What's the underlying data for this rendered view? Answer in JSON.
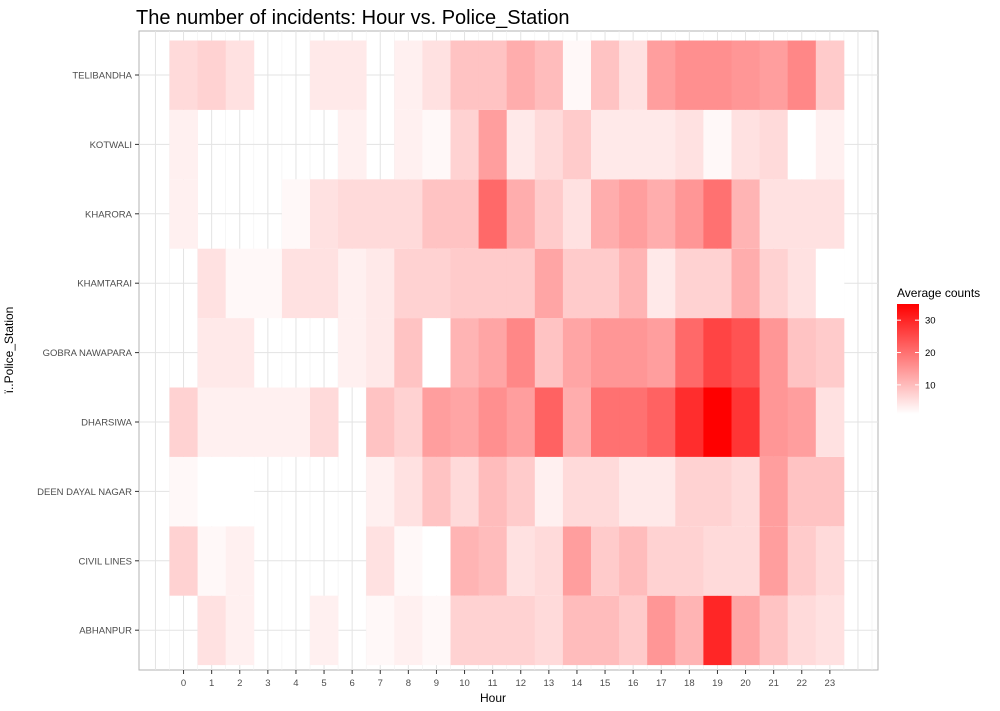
{
  "chart_data": {
    "type": "heatmap",
    "title": "The number of incidents: Hour vs. Police_Station",
    "xlabel": "Hour",
    "ylabel": "ï..Police_Station",
    "x": [
      "0",
      "1",
      "2",
      "3",
      "4",
      "5",
      "6",
      "7",
      "8",
      "9",
      "10",
      "11",
      "12",
      "13",
      "14",
      "15",
      "16",
      "17",
      "18",
      "19",
      "20",
      "21",
      "22",
      "23"
    ],
    "y": [
      "ABHANPUR",
      "CIVIL LINES",
      "DEEN DAYAL NAGAR",
      "DHARSIWA",
      "GOBRA NAWAPARA",
      "KHAMTARAI",
      "KHARORA",
      "KOTWALI",
      "TELIBANDHA"
    ],
    "values": [
      [
        null,
        5,
        3,
        null,
        null,
        3,
        null,
        2,
        3,
        2,
        7,
        7,
        7,
        6,
        10,
        10,
        8,
        15,
        11,
        30,
        13,
        9,
        6,
        5
      ],
      [
        7,
        2,
        3,
        null,
        null,
        null,
        null,
        5,
        2,
        1,
        11,
        10,
        5,
        6,
        14,
        8,
        10,
        7,
        7,
        6,
        6,
        14,
        8,
        6
      ],
      [
        2,
        1,
        1,
        null,
        null,
        null,
        null,
        3,
        5,
        9,
        6,
        10,
        8,
        3,
        6,
        6,
        4,
        4,
        7,
        7,
        6,
        14,
        9,
        9
      ],
      [
        7,
        3,
        3,
        3,
        3,
        6,
        null,
        9,
        7,
        14,
        13,
        16,
        14,
        22,
        12,
        20,
        20,
        22,
        29,
        35,
        28,
        15,
        14,
        5
      ],
      [
        null,
        4,
        4,
        null,
        null,
        null,
        3,
        4,
        9,
        1,
        11,
        13,
        17,
        9,
        13,
        15,
        15,
        14,
        21,
        26,
        24,
        15,
        9,
        8
      ],
      [
        null,
        5,
        2,
        2,
        5,
        5,
        3,
        4,
        7,
        7,
        8,
        8,
        8,
        13,
        8,
        8,
        11,
        4,
        7,
        7,
        12,
        7,
        5,
        1
      ],
      [
        3,
        null,
        null,
        null,
        2,
        5,
        6,
        6,
        6,
        9,
        9,
        21,
        12,
        8,
        5,
        12,
        14,
        12,
        15,
        20,
        11,
        5,
        5,
        5
      ],
      [
        3,
        null,
        null,
        null,
        null,
        null,
        3,
        null,
        3,
        2,
        7,
        14,
        4,
        6,
        8,
        4,
        4,
        4,
        5,
        2,
        5,
        6,
        1,
        3
      ],
      [
        6,
        7,
        5,
        null,
        null,
        4,
        4,
        null,
        3,
        5,
        9,
        9,
        12,
        10,
        2,
        9,
        5,
        14,
        16,
        16,
        15,
        14,
        17,
        8
      ]
    ],
    "legend": {
      "title": "Average counts",
      "position": "right",
      "ticks": [
        10,
        20,
        30
      ],
      "range": [
        1,
        35
      ],
      "color_low": "#ffffff",
      "color_high": "#ff0000"
    },
    "grid": true
  }
}
